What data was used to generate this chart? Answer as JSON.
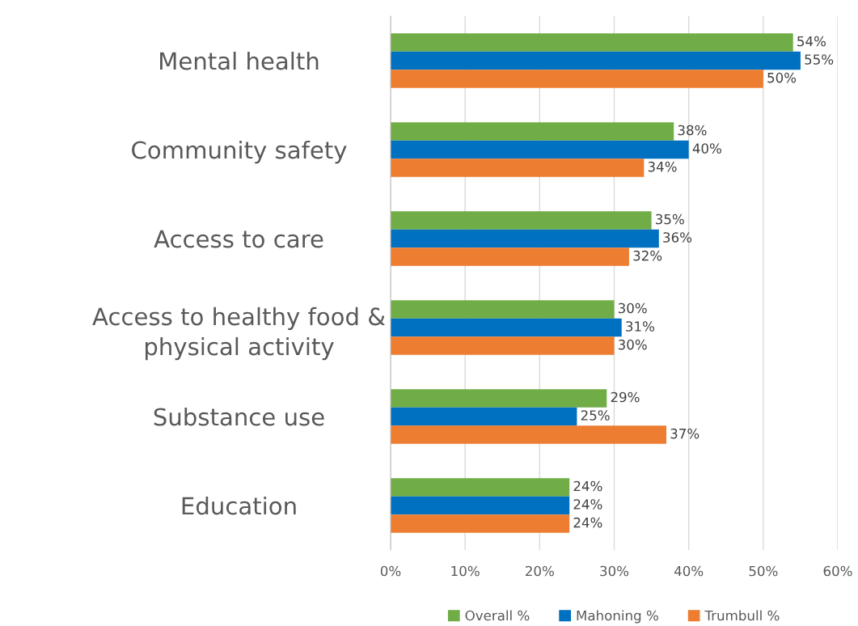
{
  "chart_data": {
    "type": "bar",
    "orientation": "horizontal",
    "categories": [
      "Mental health",
      "Community safety",
      "Access to care",
      "Access to healthy food & physical activity",
      "Substance use",
      "Education"
    ],
    "series": [
      {
        "name": "Overall %",
        "color": "#70ad47",
        "values": [
          54,
          38,
          35,
          30,
          29,
          24
        ],
        "value_labels": [
          "54%",
          "38%",
          "35%",
          "30%",
          "29%",
          "24%"
        ]
      },
      {
        "name": "Mahoning %",
        "color": "#0070c0",
        "values": [
          55,
          40,
          36,
          31,
          25,
          24
        ],
        "value_labels": [
          "55%",
          "40%",
          "36%",
          "31%",
          "25%",
          "24%"
        ]
      },
      {
        "name": "Trumbull %",
        "color": "#ed7d31",
        "values": [
          50,
          34,
          32,
          30,
          37,
          24
        ],
        "value_labels": [
          "50%",
          "34%",
          "32%",
          "30%",
          "37%",
          "24%"
        ]
      }
    ],
    "xlim": [
      0,
      60
    ],
    "xticks": [
      {
        "value": 0,
        "label": "0%"
      },
      {
        "value": 10,
        "label": "10%"
      },
      {
        "value": 20,
        "label": "20%"
      },
      {
        "value": 30,
        "label": "30%"
      },
      {
        "value": 40,
        "label": "40%"
      },
      {
        "value": 50,
        "label": "50%"
      },
      {
        "value": 60,
        "label": "60%"
      }
    ],
    "grid": "x",
    "legend": "bottom"
  }
}
